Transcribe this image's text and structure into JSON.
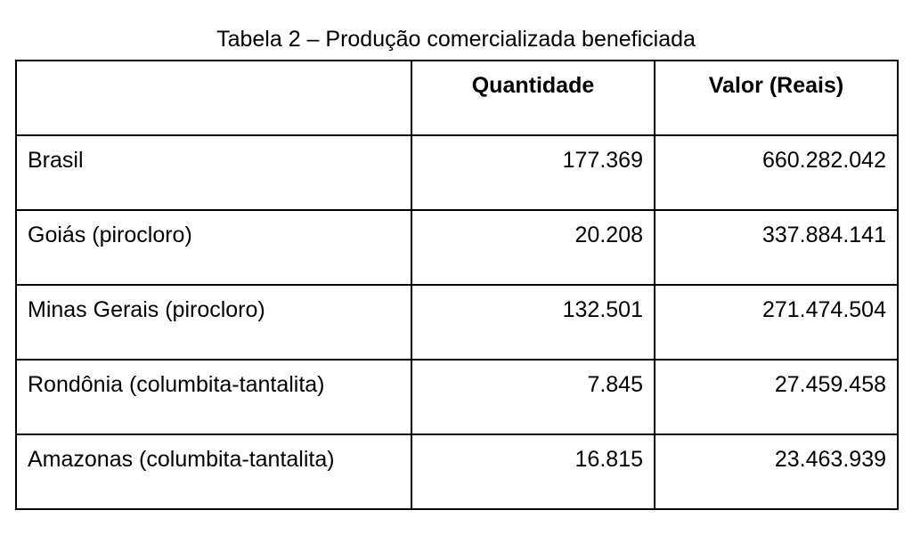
{
  "title": "Tabela 2 – Produção comercializada beneficiada",
  "table": {
    "header": [
      "Quantidade",
      "Valor (Reais)"
    ],
    "rows": [
      [
        "Brasil",
        "177.369",
        "660.282.042"
      ],
      [
        "Goiás (pirocloro)",
        "20.208",
        "337.884.141"
      ],
      [
        "Minas Gerais (pirocloro)",
        "132.501",
        "271.474.504"
      ],
      [
        "Rondônia (columbita-tantalita)",
        "7.845",
        "27.459.458"
      ],
      [
        "Amazonas (columbita-tantalita)",
        "16.815",
        "23.463.939"
      ]
    ]
  }
}
